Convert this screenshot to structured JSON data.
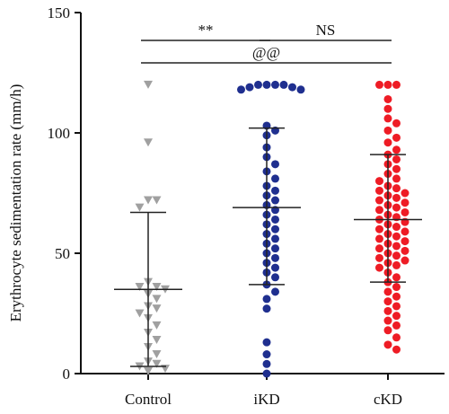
{
  "chart_data": {
    "type": "scatter",
    "title": "",
    "ylabel": "Erythrocyte sedimentation rate (mm/h)",
    "xlabel": "",
    "ylim": [
      0,
      150
    ],
    "yticks": [
      0,
      50,
      100,
      150
    ],
    "categories": [
      "Control",
      "iKD",
      "cKD"
    ],
    "series": [
      {
        "category": "Control",
        "marker": "triangle-down",
        "color": "#a0a0a0",
        "mean": 35,
        "sd_low": 3,
        "sd_high": 67,
        "values": [
          120,
          96,
          72,
          72,
          69,
          38,
          36,
          36,
          35,
          33,
          31,
          28,
          27,
          25,
          23,
          20,
          17,
          14,
          11,
          8,
          5,
          4,
          3,
          2,
          1
        ]
      },
      {
        "category": "iKD",
        "marker": "circle",
        "color": "#1f2f8f",
        "mean": 69,
        "sd_low": 37,
        "sd_high": 102,
        "values": [
          120,
          120,
          120,
          120,
          119,
          119,
          118,
          118,
          103,
          101,
          99,
          94,
          90,
          87,
          84,
          81,
          78,
          76,
          74,
          72,
          70,
          68,
          66,
          64,
          62,
          60,
          58,
          56,
          54,
          52,
          50,
          48,
          46,
          44,
          42,
          40,
          37,
          34,
          31,
          27,
          13,
          8,
          4,
          0
        ]
      },
      {
        "category": "cKD",
        "marker": "circle",
        "color": "#ee1c25",
        "mean": 64,
        "sd_low": 38,
        "sd_high": 91,
        "values": [
          120,
          120,
          120,
          114,
          110,
          106,
          104,
          101,
          98,
          96,
          93,
          91,
          89,
          87,
          85,
          83,
          81,
          80,
          78,
          77,
          76,
          75,
          74,
          73,
          72,
          71,
          70,
          69,
          68,
          67,
          66,
          65,
          64,
          63,
          62,
          61,
          60,
          59,
          58,
          57,
          56,
          55,
          54,
          53,
          52,
          51,
          50,
          49,
          48,
          47,
          46,
          45,
          44,
          42,
          40,
          38,
          36,
          34,
          32,
          30,
          28,
          26,
          24,
          22,
          20,
          18,
          15,
          12,
          10
        ]
      }
    ],
    "annotations": [
      {
        "text": "**",
        "from": "Control",
        "to": "iKD",
        "level": 1
      },
      {
        "text": "NS",
        "from": "iKD",
        "to": "cKD",
        "level": 1
      },
      {
        "text": "@@",
        "from": "Control",
        "to": "cKD",
        "level": 2
      }
    ]
  }
}
